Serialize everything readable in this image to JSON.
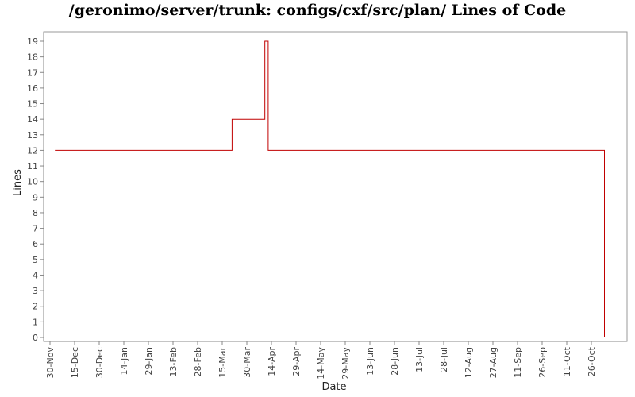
{
  "chart_data": {
    "type": "line",
    "title": "/geronimo/server/trunk: configs/cxf/src/plan/ Lines of Code",
    "xlabel": "Date",
    "ylabel": "Lines",
    "ylim": [
      0,
      19
    ],
    "y_ticks": [
      "0",
      "1",
      "2",
      "3",
      "4",
      "5",
      "6",
      "7",
      "8",
      "9",
      "10",
      "11",
      "12",
      "13",
      "14",
      "15",
      "16",
      "17",
      "18",
      "19"
    ],
    "x_ticks": [
      "30-Nov",
      "15-Dec",
      "30-Dec",
      "14-Jan",
      "29-Jan",
      "13-Feb",
      "28-Feb",
      "15-Mar",
      "30-Mar",
      "14-Apr",
      "29-Apr",
      "14-May",
      "29-May",
      "13-Jun",
      "28-Jun",
      "13-Jul",
      "28-Jul",
      "12-Aug",
      "27-Aug",
      "11-Sep",
      "26-Sep",
      "11-Oct",
      "26-Oct"
    ],
    "step": true,
    "grid": false,
    "series": [
      {
        "color": "#c00000",
        "points": [
          {
            "x": "03-Dec",
            "y": 12
          },
          {
            "x": "21-Mar",
            "y": 14
          },
          {
            "x": "10-Apr",
            "y": 19
          },
          {
            "x": "12-Apr",
            "y": 12
          },
          {
            "x": "03-Nov",
            "y": 0
          }
        ]
      }
    ]
  }
}
